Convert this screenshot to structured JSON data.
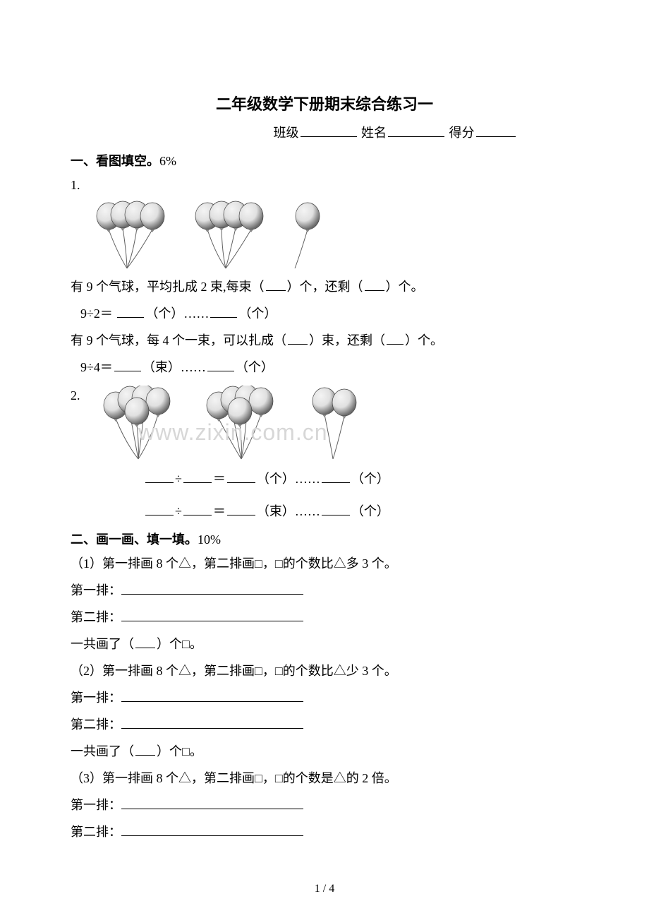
{
  "title": "二年级数学下册期末综合练习一",
  "header": {
    "class_label": "班级",
    "name_label": "姓名",
    "score_label": "得分",
    "blank_width": 80
  },
  "section1": {
    "heading_prefix": "一、",
    "heading_bold": "看图填空。",
    "heading_suffix": "6%",
    "q1": {
      "num": "1.",
      "line1_a": "有 9 个气球，平均扎成 2 束,每束（",
      "line1_b": "）个，还剩（",
      "line1_c": "）个。",
      "line2_a": "9÷2＝",
      "line2_b": "（个）……",
      "line2_c": "（个）",
      "line3_a": "有 9 个气球，每 4 个一束，可以扎成（",
      "line3_b": "）束，还剩（",
      "line3_c": "）个。",
      "line4_a": "9÷4＝",
      "line4_b": "（束）……",
      "line4_c": "（个）",
      "blank_short": 38,
      "paren_gap": 28
    },
    "q2": {
      "num": "2.",
      "l1_mid1": "÷",
      "l1_mid2": "＝",
      "l1_unit1": "（个）……",
      "l1_unit2": "（个）",
      "l2_mid1": "÷",
      "l2_mid2": "＝",
      "l2_unit1": "（束）……",
      "l2_unit2": "（个）",
      "blank": 40
    }
  },
  "section2": {
    "heading_prefix": "二、",
    "heading_bold": "画一画、填一填。",
    "heading_suffix": "10%",
    "sub1": {
      "q": "（1）第一排画 8 个△，第二排画□，□的个数比△多 3 个。",
      "r1_label": "第一排：",
      "r2_label": "第二排：",
      "total_a": "一共画了（",
      "total_b": "）个□。"
    },
    "sub2": {
      "q": "（2）第一排画 8 个△，第二排画□，□的个数比△少 3 个。",
      "r1_label": "第一排：",
      "r2_label": "第二排：",
      "total_a": "一共画了（",
      "total_b": "）个□。"
    },
    "sub3": {
      "q": "（3）第一排画 8 个△，第二排画□，□的个数是△的 2 倍。",
      "r1_label": "第一排：",
      "r2_label": "第二排："
    },
    "underline_width": 258,
    "paren_gap": 28
  },
  "balloons": {
    "fill_light": "#e0e0e0",
    "fill_dark": "#808080",
    "stroke": "#404040",
    "string_stroke": "#606060"
  },
  "watermark": "www.zixin.com.cn",
  "page_num": "1 / 4"
}
